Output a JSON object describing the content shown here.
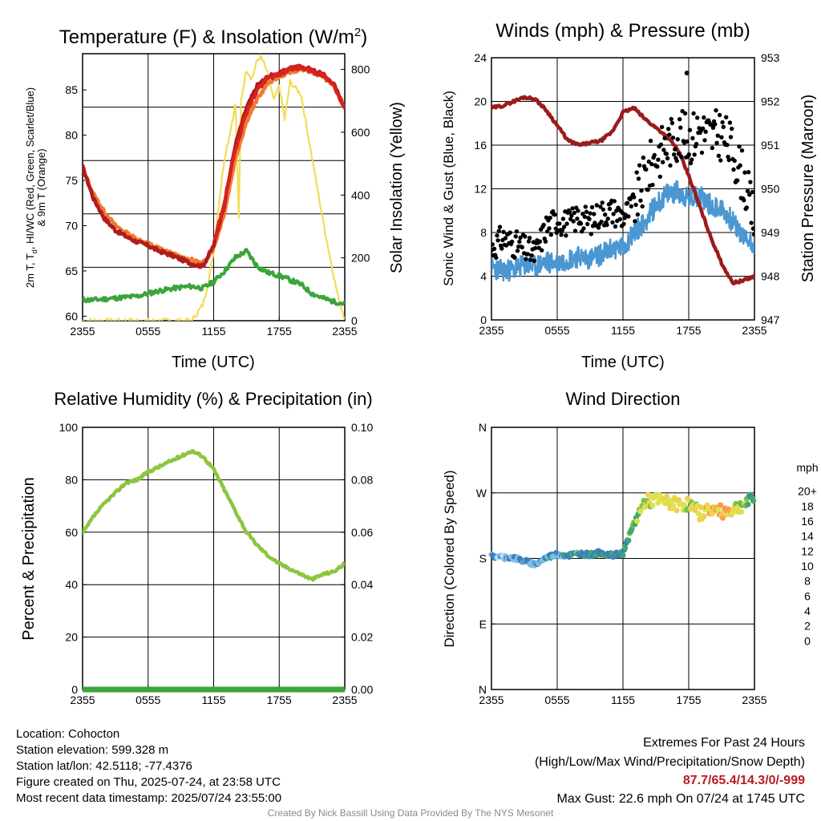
{
  "colors": {
    "temp_2m": "#b01c1c",
    "dewpoint": "#3aa53a",
    "hiwc": "#d8231f",
    "temp_9m": "#f07a30",
    "insolation": "#f4dc55",
    "sonic_wind": "#4b97d1",
    "gust": "#000000",
    "pressure": "#9b1c1c",
    "rh": "#8cc63f",
    "precip": "#3aa53a"
  },
  "chart_data": [
    {
      "type": "line",
      "title": "Temperature (F) & Insolation (W/m",
      "title_sup": "2",
      "title_close": ")",
      "xlabel": "Time (UTC)",
      "ylabel_lines": [
        "2m T, T",
        "d",
        ", HI/WC (Red, Green, Scarlet/Blue)",
        "& 9m T (Orange)"
      ],
      "y2label": "Solar Insolation (Yellow)",
      "x_ticks": [
        "2355",
        "0555",
        "1155",
        "1755",
        "2355"
      ],
      "ylim": [
        59.5,
        89
      ],
      "y_ticks": [
        "60",
        "65",
        "70",
        "75",
        "80",
        "85"
      ],
      "y2lim": [
        0,
        850
      ],
      "y2_ticks": [
        "0",
        "200",
        "400",
        "600",
        "800"
      ],
      "x_hours": [
        0,
        1,
        2,
        3,
        4,
        5,
        6,
        7,
        8,
        9,
        10,
        11,
        12,
        13,
        14,
        15,
        16,
        17,
        18,
        19,
        20,
        21,
        22,
        23,
        24
      ],
      "series": [
        {
          "key": "temp_9m",
          "values": [
            76.3,
            73.5,
            71.5,
            70.0,
            69.2,
            68.5,
            68.0,
            67.5,
            67.0,
            66.5,
            66.2,
            65.8,
            67.5,
            71.5,
            77.5,
            81.5,
            84.0,
            85.8,
            86.5,
            87.0,
            87.3,
            87.0,
            86.5,
            85.5,
            83.0
          ]
        },
        {
          "key": "temp_2m",
          "values": [
            76.5,
            73.0,
            70.8,
            69.5,
            68.8,
            68.2,
            67.8,
            67.2,
            66.8,
            66.3,
            65.8,
            65.5,
            67.8,
            72.5,
            79.0,
            83.0,
            85.5,
            86.5,
            86.8,
            87.4,
            87.6,
            87.2,
            86.7,
            85.6,
            83.0
          ]
        },
        {
          "key": "hiwc",
          "values": [
            null,
            null,
            null,
            null,
            null,
            null,
            null,
            null,
            null,
            null,
            null,
            null,
            67.9,
            72.8,
            78.5,
            82.5,
            85.0,
            86.3,
            86.7,
            87.3,
            87.5,
            87.1,
            86.6,
            85.5,
            83.0
          ]
        },
        {
          "key": "dewpoint",
          "values": [
            61.8,
            61.8,
            61.9,
            62.0,
            62.1,
            62.2,
            62.5,
            62.8,
            63.0,
            63.2,
            63.3,
            63.1,
            63.8,
            65.0,
            66.5,
            67.2,
            65.5,
            64.8,
            64.5,
            64.0,
            63.5,
            62.5,
            62.0,
            61.6,
            61.4
          ]
        }
      ],
      "insolation": {
        "x_hours": [
          0,
          1,
          2,
          3,
          4,
          5,
          6,
          7,
          8,
          9,
          10,
          11,
          11.5,
          12,
          12.5,
          13,
          13.5,
          14,
          14.3,
          14.5,
          15,
          15.5,
          16,
          16.3,
          16.6,
          17,
          17.5,
          18,
          18.5,
          19,
          19.5,
          20,
          20.5,
          21,
          21.5,
          22,
          22.5,
          23,
          23.5,
          24
        ],
        "values": [
          0,
          0,
          0,
          0,
          0,
          0,
          0,
          0,
          0,
          0,
          0,
          50,
          120,
          220,
          380,
          520,
          600,
          690,
          320,
          700,
          800,
          770,
          830,
          840,
          820,
          780,
          700,
          750,
          640,
          760,
          740,
          720,
          620,
          520,
          420,
          320,
          230,
          140,
          60,
          10
        ]
      }
    },
    {
      "type": "line",
      "title": "Winds (mph) & Pressure (mb)",
      "xlabel": "Time (UTC)",
      "ylabel": "Sonic Wind & Gust (Blue, Black)",
      "y2label": "Station Pressure (Maroon)",
      "x_ticks": [
        "2355",
        "0555",
        "1155",
        "1755",
        "2355"
      ],
      "ylim": [
        0,
        24
      ],
      "y_ticks": [
        "0",
        "4",
        "8",
        "12",
        "16",
        "20",
        "24"
      ],
      "y2lim": [
        947,
        953
      ],
      "y2_ticks": [
        "947",
        "948",
        "949",
        "950",
        "951",
        "952",
        "953"
      ],
      "x_hours": [
        0,
        1,
        2,
        3,
        4,
        5,
        6,
        7,
        8,
        9,
        10,
        11,
        12,
        13,
        14,
        15,
        16,
        17,
        18,
        19,
        20,
        21,
        22,
        23,
        24
      ],
      "sonic_wind": [
        4.8,
        4.5,
        4.6,
        5.0,
        4.9,
        5.3,
        5.2,
        5.6,
        5.8,
        5.6,
        6.0,
        6.5,
        6.6,
        8.0,
        9.0,
        10.5,
        11.5,
        11.8,
        11.0,
        11.5,
        10.5,
        10.2,
        9.0,
        7.5,
        7.0
      ],
      "gust": [
        6.5,
        7.5,
        7.0,
        6.5,
        6.0,
        8.5,
        9.2,
        8.8,
        9.5,
        9.0,
        9.8,
        10.0,
        9.5,
        10.5,
        13.0,
        15.0,
        16.0,
        17.0,
        16.5,
        17.5,
        16.8,
        17.0,
        15.5,
        13.0,
        9.0
      ],
      "max_gust_point": {
        "x_hour": 17.83,
        "value": 22.6
      },
      "pressure": [
        951.85,
        951.9,
        952.0,
        952.1,
        952.05,
        951.8,
        951.45,
        951.1,
        951.0,
        951.05,
        951.1,
        951.3,
        951.75,
        951.85,
        951.6,
        951.4,
        951.2,
        950.9,
        950.3,
        949.6,
        948.9,
        948.3,
        947.85,
        947.9,
        948.0
      ]
    },
    {
      "type": "line",
      "title": "Relative Humidity (%) & Precipitation (in)",
      "ylabel": "Percent & Precipitation",
      "x_ticks": [
        "2355",
        "0555",
        "1155",
        "1755",
        "2355"
      ],
      "ylim": [
        0,
        100
      ],
      "y_ticks": [
        "0",
        "20",
        "40",
        "60",
        "80",
        "100"
      ],
      "y2lim": [
        0,
        0.1
      ],
      "y2_ticks": [
        "0.00",
        "0.02",
        "0.04",
        "0.06",
        "0.08",
        "0.10"
      ],
      "x_hours": [
        0,
        1,
        2,
        3,
        4,
        5,
        6,
        7,
        8,
        9,
        10,
        11,
        12,
        13,
        14,
        15,
        16,
        17,
        18,
        19,
        20,
        21,
        22,
        23,
        24
      ],
      "rh": [
        59.5,
        66,
        71,
        75,
        79,
        80,
        83,
        85,
        87,
        89,
        91,
        89,
        84,
        76,
        68,
        60,
        55,
        51,
        48,
        46,
        44,
        42,
        44,
        45,
        48
      ],
      "precip": [
        0,
        0,
        0,
        0,
        0,
        0,
        0,
        0,
        0,
        0,
        0,
        0,
        0,
        0,
        0,
        0,
        0,
        0,
        0,
        0,
        0,
        0,
        0,
        0,
        0
      ]
    },
    {
      "type": "scatter",
      "title": "Wind Direction",
      "ylabel": "Direction (Colored By Speed)",
      "x_ticks": [
        "2355",
        "0555",
        "1155",
        "1755",
        "2355"
      ],
      "ylim": [
        0,
        360
      ],
      "y_ticks": [
        "N",
        "E",
        "S",
        "W",
        "N"
      ],
      "x_hours": [
        0,
        1,
        2,
        3,
        4,
        5,
        6,
        7,
        8,
        9,
        10,
        11,
        12,
        13,
        14,
        15,
        16,
        17,
        18,
        19,
        20,
        21,
        22,
        23,
        24
      ],
      "direction": [
        183,
        182,
        181,
        176,
        172,
        181,
        186,
        184,
        187,
        185,
        188,
        184,
        187,
        228,
        258,
        260,
        257,
        254,
        255,
        242,
        248,
        244,
        247,
        254,
        262
      ],
      "speed": [
        3,
        3,
        4,
        4,
        4,
        4,
        5,
        5,
        5,
        6,
        6,
        6,
        6,
        8,
        11,
        11,
        12,
        12,
        11,
        12,
        13,
        14,
        12,
        9,
        6
      ],
      "colorbar": {
        "title": "mph",
        "labels": [
          "20+",
          "18",
          "16",
          "14",
          "12",
          "10",
          "8",
          "6",
          "4",
          "2",
          "0"
        ],
        "colors": [
          "#9e1c1f",
          "#c8242b",
          "#e0352f",
          "#f06230",
          "#f8a046",
          "#f2cf4f",
          "#dae54b",
          "#78c04f",
          "#41a86e",
          "#3c7fbe",
          "#80bde6",
          "#bfe5f8"
        ]
      }
    }
  ],
  "station_info": [
    "Location: Cohocton",
    "Station elevation: 599.328 m",
    "Station lat/lon: 42.5118; -77.4376",
    "Figure created on Thu, 2025-07-24, at 23:58 UTC",
    "Most recent data timestamp: 2025/07/24 23:55:00"
  ],
  "extremes": {
    "title": "Extremes For Past 24 Hours",
    "subtitle": "(High/Low/Max Wind/Precipitation/Snow Depth)",
    "values": "87.7/65.4/14.3/0/-999",
    "max_gust": "Max Gust: 22.6 mph On 07/24 at 1745 UTC"
  },
  "credit": "Created By Nick Bassill Using Data Provided By The NYS Mesonet"
}
